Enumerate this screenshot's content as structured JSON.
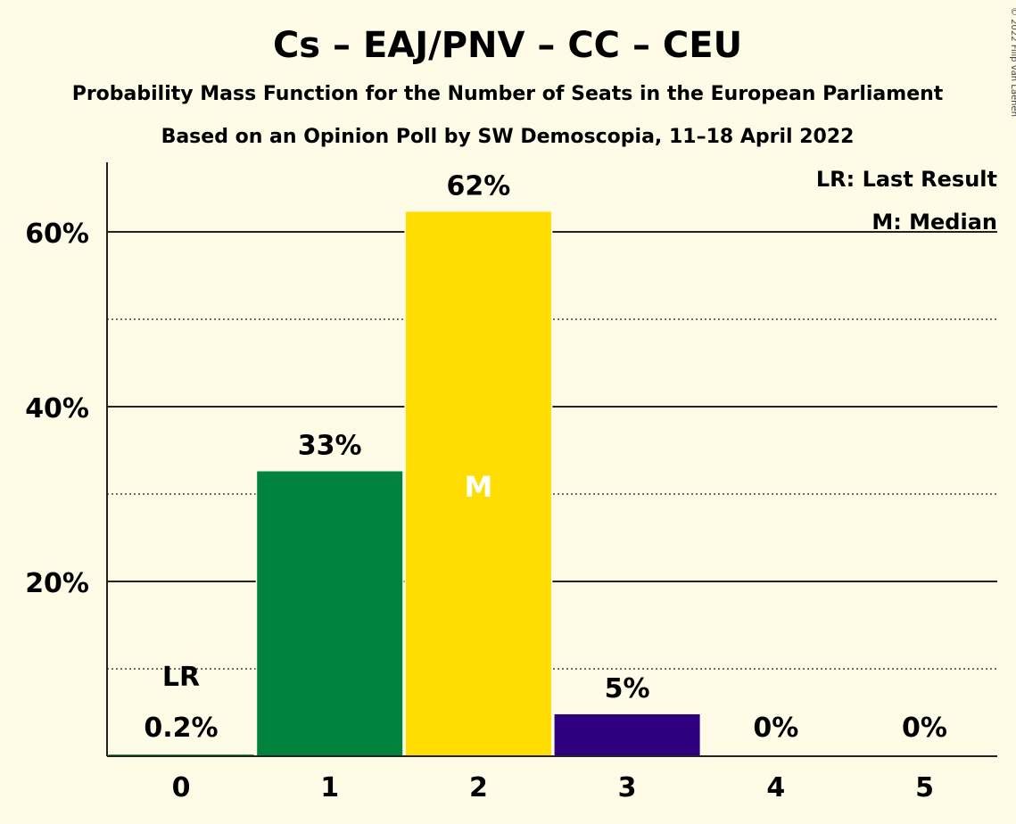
{
  "chart_data": {
    "type": "bar",
    "title": "Cs – EAJ/PNV – CC – CEU",
    "subtitle": "Probability Mass Function for the Number of Seats in the European Parliament",
    "subtitle2": "Based on an Opinion Poll by SW Demoscopia, 11–18 April 2022",
    "categories": [
      "0",
      "1",
      "2",
      "3",
      "4",
      "5"
    ],
    "values": [
      0.2,
      32.6,
      62.3,
      4.8,
      0,
      0
    ],
    "value_labels": [
      "0.2%",
      "33%",
      "62%",
      "5%",
      "0%",
      "0%"
    ],
    "colors": [
      "#1a9641",
      "#00843d",
      "#ffdd00",
      "#2e0080",
      "#00843d",
      "#00843d"
    ],
    "ylim": [
      0,
      68
    ],
    "yticks": [
      20,
      40,
      60
    ],
    "ytick_labels": [
      "20%",
      "40%",
      "60%"
    ],
    "minor_gridlines": [
      10,
      30,
      50
    ],
    "last_result_index": 0,
    "last_result_mark": "LR",
    "median_index": 2,
    "median_mark": "M",
    "legend": {
      "placement": "top-right",
      "last_result": "LR: Last Result",
      "median": "M: Median"
    },
    "copyright": "© 2022 Filip van Laenen"
  }
}
